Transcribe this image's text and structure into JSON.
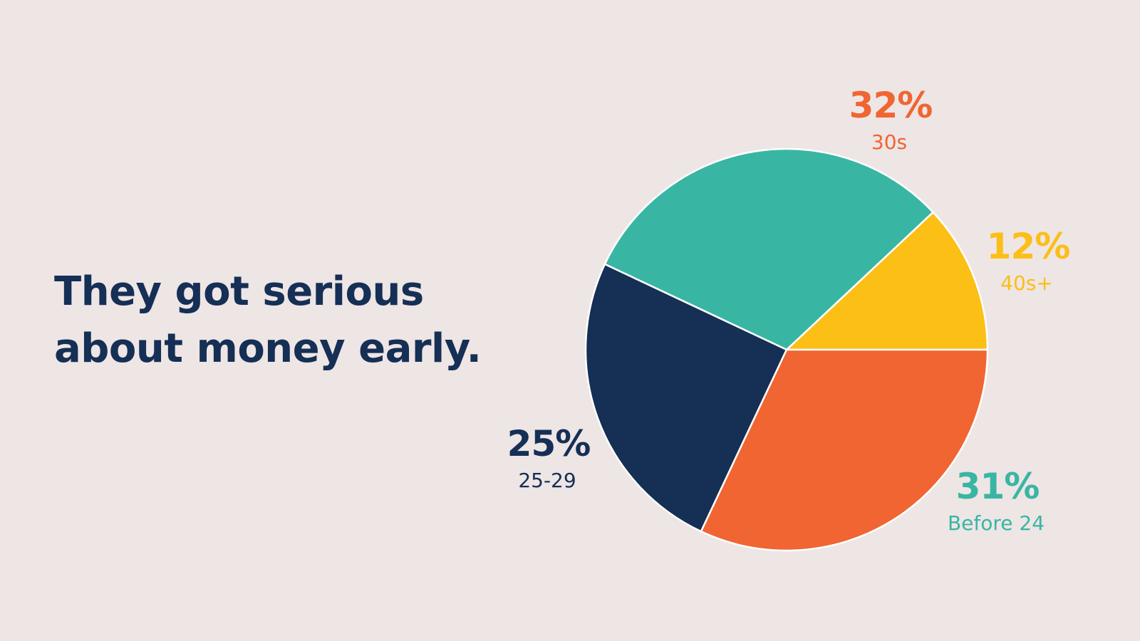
{
  "headline": {
    "line1": "They got serious",
    "line2": "about money early."
  },
  "chart_data": {
    "type": "pie",
    "slices": [
      {
        "category": "40s+",
        "value": 12,
        "label": "12%",
        "color": "#FBBF16"
      },
      {
        "category": "Before 24",
        "value": 31,
        "label": "31%",
        "color": "#38B6A3"
      },
      {
        "category": "25-29",
        "value": 25,
        "label": "25%",
        "color": "#152F55"
      },
      {
        "category": "30s",
        "value": 32,
        "label": "32%",
        "color": "#F06532"
      }
    ]
  },
  "colors": {
    "background": "#EEE5E5",
    "text_primary": "#152F55",
    "slice_border": "#FFFFFF"
  }
}
